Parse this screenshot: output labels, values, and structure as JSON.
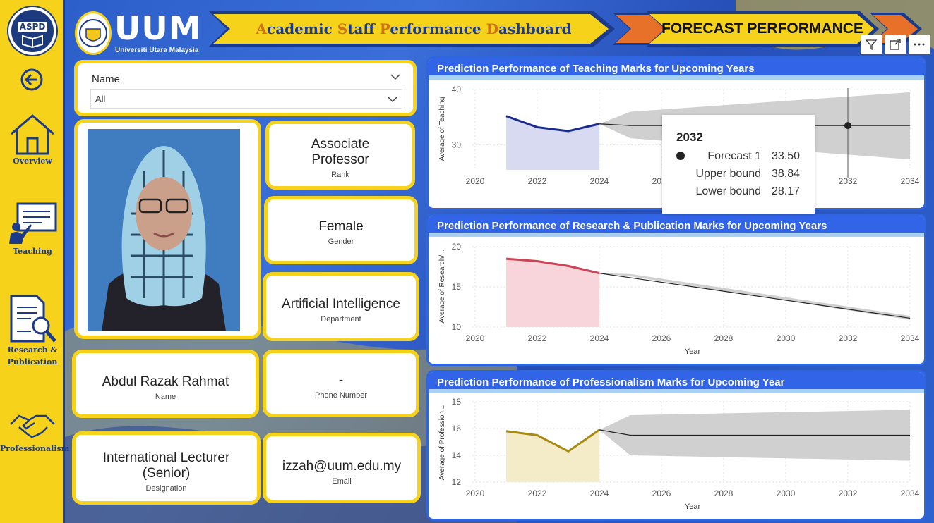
{
  "sidebar": {
    "badge": "ASPD",
    "items": [
      {
        "label": "Overview"
      },
      {
        "label": "Teaching"
      },
      {
        "label": "Research &"
      },
      {
        "label": "Publication"
      },
      {
        "label": "Professionalism"
      }
    ]
  },
  "header": {
    "logo_text": "UUM",
    "logo_sub": "Universiti Utara Malaysia",
    "title_parts": [
      "A",
      "cademic ",
      "S",
      "taff ",
      "P",
      "erformance ",
      "D",
      "ashboard"
    ],
    "page": "FORECAST PERFORMANCE"
  },
  "filter": {
    "title": "Name",
    "value": "All"
  },
  "profile": {
    "rank": "Associate Professor",
    "rank_label": "Rank",
    "gender": "Female",
    "gender_label": "Gender",
    "department": "Artificial Intelligence",
    "department_label": "Department",
    "name": "Abdul Razak Rahmat",
    "name_label": "Name",
    "phone": "-",
    "phone_label": "Phone Number",
    "designation": "International  Lecturer (Senior)",
    "designation_label": "Designation",
    "email": "izzah@uum.edu.my",
    "email_label": "Email"
  },
  "colors": {
    "teaching": "#1a2b8f",
    "research": "#cc4455",
    "profession": "#a88a12",
    "band": "#d0d0d0"
  },
  "tooltip": {
    "year": "2032",
    "rows": [
      {
        "label": "Forecast 1",
        "value": "33.50"
      },
      {
        "label": "Upper bound",
        "value": "38.84"
      },
      {
        "label": "Lower bound",
        "value": "28.17"
      }
    ]
  },
  "chart_data": [
    {
      "type": "line",
      "title": "Prediction Performance of Teaching Marks for Upcoming Years",
      "ylabel": "Average of Teaching",
      "xlabel": "",
      "x_ticks": [
        "2020",
        "2022",
        "2024",
        "2026",
        "2028",
        "2030",
        "2032",
        "2034"
      ],
      "y_ticks": [
        "30",
        "40"
      ],
      "ylim": [
        25.5,
        40
      ],
      "xlim": [
        2020,
        2034
      ],
      "actual": {
        "x": [
          2021,
          2022,
          2023,
          2024
        ],
        "y": [
          35.2,
          33.2,
          32.5,
          33.8
        ]
      },
      "forecast": {
        "x": [
          2024,
          2025,
          2032,
          2034
        ],
        "y": [
          33.8,
          33.5,
          33.5,
          33.5
        ]
      },
      "upper": {
        "x": [
          2024,
          2025,
          2034
        ],
        "y": [
          33.8,
          36.0,
          39.5
        ]
      },
      "lower": {
        "x": [
          2024,
          2025,
          2034
        ],
        "y": [
          33.8,
          31.2,
          27.4
        ]
      },
      "highlight": {
        "x": 2032,
        "y": 33.5
      }
    },
    {
      "type": "line",
      "title": "Prediction Performance of Research & Publication Marks for Upcoming Years",
      "ylabel": "Average of Research/...",
      "xlabel": "Year",
      "x_ticks": [
        "2020",
        "2022",
        "2024",
        "2026",
        "2028",
        "2030",
        "2032",
        "2034"
      ],
      "y_ticks": [
        "10",
        "15",
        "20"
      ],
      "ylim": [
        10,
        20
      ],
      "xlim": [
        2020,
        2034
      ],
      "actual": {
        "x": [
          2021,
          2022,
          2023,
          2024
        ],
        "y": [
          18.5,
          18.2,
          17.6,
          16.7
        ]
      },
      "forecast": {
        "x": [
          2024,
          2034
        ],
        "y": [
          16.7,
          11.1
        ]
      },
      "upper": {
        "x": [
          2024,
          2025,
          2034
        ],
        "y": [
          16.7,
          16.6,
          11.4
        ]
      },
      "lower": {
        "x": [
          2024,
          2025,
          2034
        ],
        "y": [
          16.7,
          16.3,
          10.9
        ]
      }
    },
    {
      "type": "line",
      "title": "Prediction Performance of Professionalism Marks for Upcoming Year",
      "ylabel": "Average of Profession...",
      "xlabel": "Year",
      "x_ticks": [
        "2020",
        "2022",
        "2024",
        "2026",
        "2028",
        "2030",
        "2032",
        "2034"
      ],
      "y_ticks": [
        "12",
        "14",
        "16",
        "18"
      ],
      "ylim": [
        12,
        18
      ],
      "xlim": [
        2020,
        2034
      ],
      "actual": {
        "x": [
          2021,
          2022,
          2023,
          2024
        ],
        "y": [
          15.8,
          15.5,
          14.3,
          15.9
        ]
      },
      "forecast": {
        "x": [
          2024,
          2025,
          2034
        ],
        "y": [
          15.9,
          15.5,
          15.5
        ]
      },
      "upper": {
        "x": [
          2024,
          2025,
          2034
        ],
        "y": [
          15.9,
          17.0,
          17.4
        ]
      },
      "lower": {
        "x": [
          2024,
          2025,
          2034
        ],
        "y": [
          15.9,
          14.0,
          13.6
        ]
      }
    }
  ]
}
